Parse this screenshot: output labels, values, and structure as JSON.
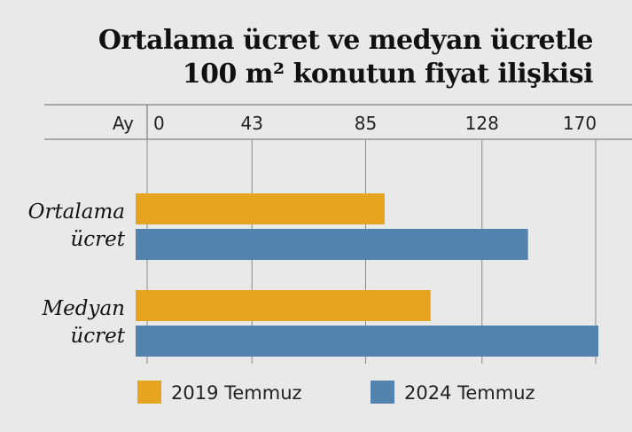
{
  "colors": {
    "background": "#e8e9e8",
    "series_2019": "#e6a520",
    "series_2024": "#5283ae",
    "gridline": "#888888",
    "axis_rule": "#666666"
  },
  "chart_data": {
    "type": "bar",
    "orientation": "horizontal",
    "title_line1": "Ortalama ücret ve medyan ücretle",
    "title_line2": "100 m² konutun fiyat ilişkisi",
    "xlabel": "Ay",
    "ylabel": "",
    "xlim": [
      0,
      170
    ],
    "xticks": [
      0,
      43,
      85,
      128,
      170
    ],
    "grid": true,
    "legend_position": "bottom",
    "categories": [
      [
        "Ortalama",
        "ücret"
      ],
      [
        "Medyan",
        "ücret"
      ]
    ],
    "series": [
      {
        "name": "2019 Temmuz",
        "color": "#e6a520",
        "values": [
          92,
          109
        ]
      },
      {
        "name": "2024 Temmuz",
        "color": "#5283ae",
        "values": [
          145,
          171
        ]
      }
    ]
  }
}
